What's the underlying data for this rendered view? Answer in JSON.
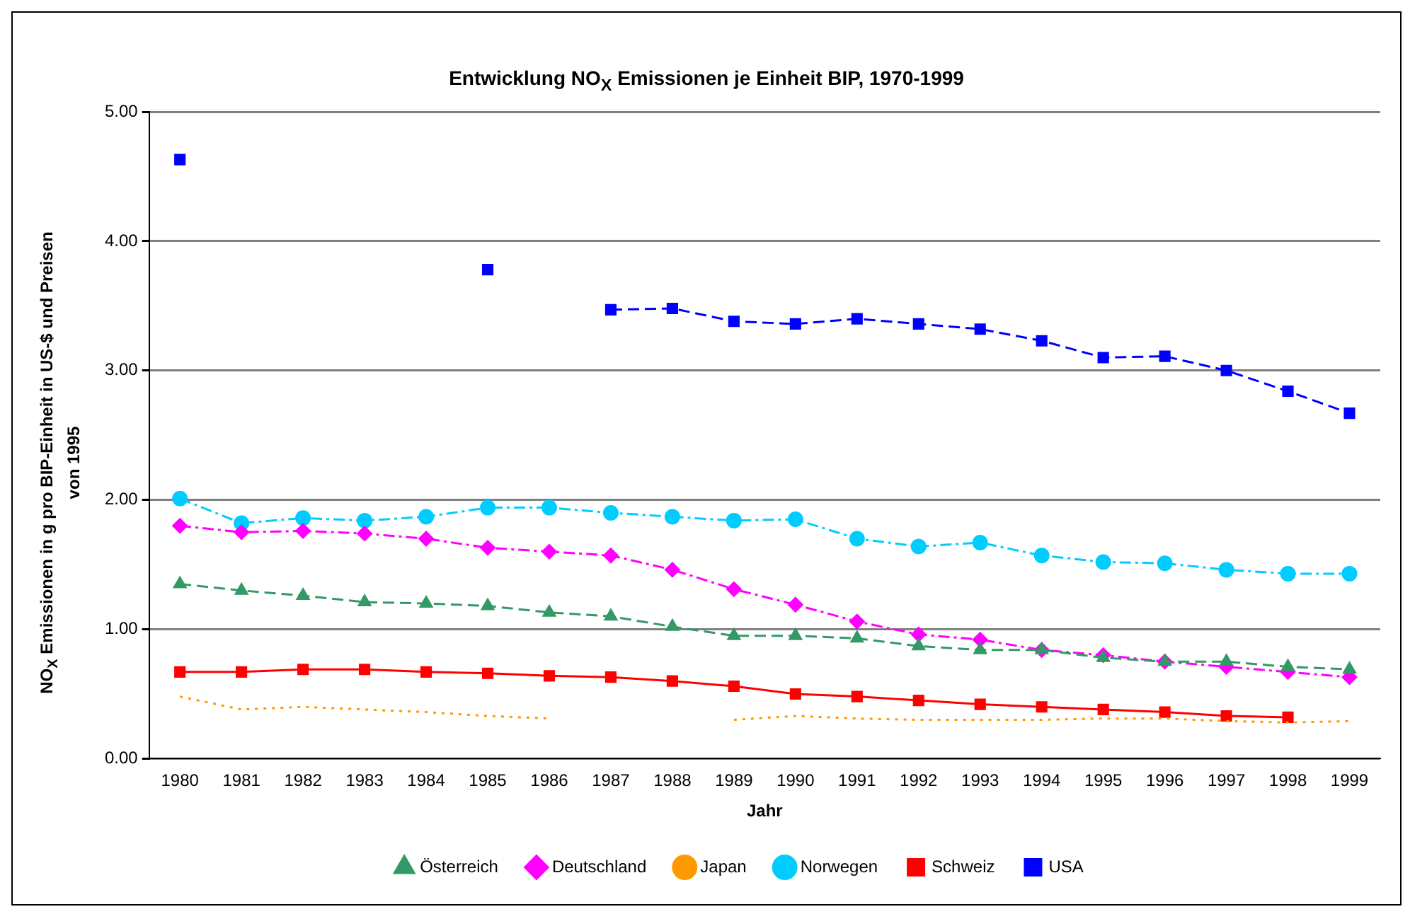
{
  "chart_data": {
    "type": "line",
    "title": "Entwicklung NO$_{X}$ Emissionen je Einheit BIP, 1970-1999",
    "xlabel": "Jahr",
    "ylabel": "NO$_{X}$ Emissionen in g pro BIP-Einheit in US-$ und Preisen von 1995",
    "categories": [
      "1980",
      "1981",
      "1982",
      "1983",
      "1984",
      "1985",
      "1986",
      "1987",
      "1988",
      "1989",
      "1990",
      "1991",
      "1992",
      "1993",
      "1994",
      "1995",
      "1996",
      "1997",
      "1998",
      "1999"
    ],
    "series": [
      {
        "name": "Österreich",
        "color": "#339966",
        "marker": "triangle",
        "line_style": "dashed",
        "values": [
          1.35,
          1.3,
          1.26,
          1.21,
          1.2,
          1.18,
          1.13,
          1.1,
          1.02,
          0.95,
          0.95,
          0.93,
          0.87,
          0.84,
          0.84,
          0.78,
          0.75,
          0.75,
          0.71,
          0.69
        ]
      },
      {
        "name": "Deutschland",
        "color": "#ff00ff",
        "marker": "diamond",
        "line_style": "dashdot",
        "values": [
          1.8,
          1.75,
          1.76,
          1.74,
          1.7,
          1.63,
          1.6,
          1.57,
          1.46,
          1.31,
          1.19,
          1.06,
          0.96,
          0.92,
          0.84,
          0.8,
          0.75,
          0.71,
          0.67,
          0.63
        ]
      },
      {
        "name": "Japan",
        "color": "#ff9900",
        "marker": "none",
        "line_style": "dotted",
        "values": [
          0.48,
          0.38,
          0.4,
          0.38,
          0.36,
          0.33,
          0.31,
          null,
          null,
          0.3,
          0.33,
          0.31,
          0.3,
          0.3,
          0.3,
          0.31,
          0.31,
          0.29,
          0.28,
          0.29
        ]
      },
      {
        "name": "Norwegen",
        "color": "#00ccff",
        "marker": "circle",
        "line_style": "dashdot",
        "values": [
          2.01,
          1.82,
          1.86,
          1.84,
          1.87,
          1.94,
          1.94,
          1.9,
          1.87,
          1.84,
          1.85,
          1.7,
          1.64,
          1.67,
          1.57,
          1.52,
          1.51,
          1.46,
          1.43,
          1.43
        ]
      },
      {
        "name": "Schweiz",
        "color": "#ff0000",
        "marker": "square",
        "line_style": "solid",
        "values": [
          0.67,
          0.67,
          0.69,
          0.69,
          0.67,
          0.66,
          0.64,
          0.63,
          0.6,
          0.56,
          0.5,
          0.48,
          0.45,
          0.42,
          0.4,
          0.38,
          0.36,
          0.33,
          0.32,
          null
        ]
      },
      {
        "name": "USA",
        "color": "#0000ff",
        "marker": "square",
        "line_style": "dashed",
        "values": [
          4.63,
          null,
          null,
          null,
          null,
          3.78,
          null,
          3.47,
          3.48,
          3.38,
          3.36,
          3.4,
          3.36,
          3.32,
          3.23,
          3.1,
          3.11,
          3.0,
          2.84,
          2.67
        ]
      }
    ],
    "ylim": [
      0,
      5
    ],
    "yticks": [
      {
        "value": 0,
        "label": "0.00"
      },
      {
        "value": 1,
        "label": "1.00"
      },
      {
        "value": 2,
        "label": "2.00"
      },
      {
        "value": 3,
        "label": "3.00"
      },
      {
        "value": 4,
        "label": "4.00"
      },
      {
        "value": 5,
        "label": "5.00"
      }
    ],
    "grid": "y",
    "legend": "bottom"
  }
}
